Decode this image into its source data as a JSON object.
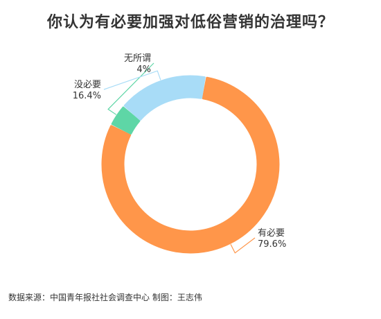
{
  "title": "你认为有必要加强对低俗营销的治理吗？",
  "source": "数据来源：中国青年报社社会调查中心 制图：王志伟",
  "chart_data": {
    "type": "pie",
    "donut": true,
    "title": "你认为有必要加强对低俗营销的治理吗？",
    "slices": [
      {
        "label": "有必要",
        "value": 79.6,
        "value_label": "79.6%",
        "color": "#FF964A"
      },
      {
        "label": "无所谓",
        "value": 4,
        "value_label": "4%",
        "color": "#5ED6A6"
      },
      {
        "label": "没必要",
        "value": 16.4,
        "value_label": "16.4%",
        "color": "#A8DCF7"
      }
    ]
  }
}
